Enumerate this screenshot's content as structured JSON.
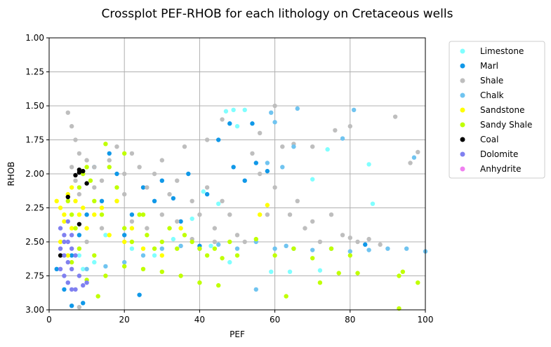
{
  "chart_data": {
    "type": "scatter",
    "title": "Crossplot PEF-RHOB for each lithology on Cretaceous wells",
    "xlabel": "PEF",
    "ylabel": "RHOB",
    "xlim": [
      0,
      100
    ],
    "ylim": [
      3.0,
      1.0
    ],
    "y_inverted": true,
    "grid": true,
    "legend_position": "outside-top-right",
    "xticks": [
      "0",
      "20",
      "40",
      "60",
      "80",
      "100"
    ],
    "yticks": [
      "1.00",
      "1.25",
      "1.50",
      "1.75",
      "2.00",
      "2.25",
      "2.50",
      "2.75",
      "3.00"
    ],
    "series": [
      {
        "name": "Limestone",
        "color": "#80ffff",
        "points": [
          [
            47,
            1.54
          ],
          [
            49,
            1.53
          ],
          [
            52,
            1.53
          ],
          [
            48,
            1.63
          ],
          [
            50,
            1.65
          ],
          [
            74,
            1.82
          ],
          [
            85,
            1.93
          ],
          [
            70,
            2.04
          ],
          [
            86,
            2.22
          ],
          [
            41,
            2.13
          ],
          [
            45,
            2.22
          ],
          [
            38,
            2.33
          ],
          [
            33,
            2.48
          ],
          [
            43,
            2.53
          ],
          [
            48,
            2.65
          ],
          [
            59,
            2.72
          ],
          [
            64,
            2.72
          ],
          [
            72,
            2.71
          ],
          [
            8,
            2.6
          ],
          [
            12,
            2.65
          ],
          [
            5,
            2.8
          ],
          [
            15,
            2.45
          ],
          [
            22,
            2.55
          ],
          [
            28,
            2.6
          ],
          [
            9,
            2.7
          ]
        ]
      },
      {
        "name": "Marl",
        "color": "#1098e8",
        "points": [
          [
            48,
            1.63
          ],
          [
            45,
            1.75
          ],
          [
            55,
            1.92
          ],
          [
            58,
            1.98
          ],
          [
            52,
            2.05
          ],
          [
            54,
            1.63
          ],
          [
            37,
            2.0
          ],
          [
            42,
            2.15
          ],
          [
            30,
            2.05
          ],
          [
            25,
            2.1
          ],
          [
            22,
            2.3
          ],
          [
            18,
            2.0
          ],
          [
            14,
            2.2
          ],
          [
            10,
            2.3
          ],
          [
            8,
            2.45
          ],
          [
            6,
            2.6
          ],
          [
            4,
            2.85
          ],
          [
            2,
            2.7
          ],
          [
            9,
            2.95
          ],
          [
            6,
            2.97
          ],
          [
            24,
            2.89
          ],
          [
            12,
            1.95
          ],
          [
            35,
            2.35
          ],
          [
            40,
            2.53
          ],
          [
            84,
            2.52
          ],
          [
            49,
            1.95
          ],
          [
            16,
            1.85
          ],
          [
            28,
            2.2
          ],
          [
            33,
            2.18
          ],
          [
            20,
            2.45
          ]
        ]
      },
      {
        "name": "Shale",
        "color": "#bebebe",
        "points": [
          [
            5,
            1.55
          ],
          [
            6,
            1.65
          ],
          [
            7,
            1.75
          ],
          [
            8,
            1.85
          ],
          [
            6,
            1.95
          ],
          [
            7,
            2.05
          ],
          [
            8,
            2.15
          ],
          [
            9,
            2.0
          ],
          [
            10,
            1.9
          ],
          [
            12,
            1.95
          ],
          [
            14,
            2.05
          ],
          [
            16,
            1.9
          ],
          [
            18,
            1.8
          ],
          [
            20,
            2.0
          ],
          [
            22,
            1.85
          ],
          [
            24,
            1.95
          ],
          [
            26,
            2.1
          ],
          [
            28,
            2.0
          ],
          [
            30,
            1.9
          ],
          [
            32,
            2.15
          ],
          [
            34,
            2.05
          ],
          [
            36,
            1.8
          ],
          [
            38,
            2.2
          ],
          [
            40,
            2.3
          ],
          [
            42,
            2.1
          ],
          [
            44,
            2.4
          ],
          [
            46,
            2.2
          ],
          [
            48,
            2.3
          ],
          [
            50,
            2.45
          ],
          [
            52,
            2.5
          ],
          [
            54,
            1.85
          ],
          [
            56,
            2.0
          ],
          [
            58,
            2.3
          ],
          [
            60,
            2.1
          ],
          [
            62,
            1.8
          ],
          [
            64,
            2.3
          ],
          [
            66,
            2.2
          ],
          [
            68,
            2.4
          ],
          [
            70,
            2.35
          ],
          [
            72,
            2.5
          ],
          [
            75,
            2.3
          ],
          [
            78,
            2.45
          ],
          [
            80,
            2.47
          ],
          [
            82,
            2.5
          ],
          [
            85,
            2.48
          ],
          [
            88,
            2.52
          ],
          [
            92,
            1.58
          ],
          [
            98,
            1.84
          ],
          [
            96,
            1.92
          ],
          [
            80,
            1.65
          ],
          [
            76,
            1.68
          ],
          [
            60,
            1.5
          ],
          [
            56,
            1.7
          ],
          [
            46,
            1.6
          ],
          [
            42,
            1.75
          ],
          [
            65,
            1.78
          ],
          [
            70,
            1.8
          ],
          [
            30,
            2.3
          ],
          [
            26,
            2.4
          ],
          [
            22,
            2.35
          ],
          [
            18,
            2.2
          ],
          [
            14,
            2.4
          ],
          [
            12,
            2.1
          ],
          [
            10,
            2.5
          ],
          [
            8,
            2.98
          ],
          [
            20,
            2.15
          ],
          [
            34,
            2.35
          ],
          [
            38,
            2.48
          ],
          [
            44,
            2.5
          ]
        ]
      },
      {
        "name": "Chalk",
        "color": "#70c4f0",
        "points": [
          [
            59,
            1.55
          ],
          [
            60,
            1.62
          ],
          [
            66,
            1.52
          ],
          [
            81,
            1.53
          ],
          [
            78,
            1.74
          ],
          [
            62,
            1.95
          ],
          [
            65,
            1.8
          ],
          [
            97,
            1.88
          ],
          [
            55,
            2.5
          ],
          [
            60,
            2.55
          ],
          [
            65,
            2.55
          ],
          [
            70,
            2.56
          ],
          [
            75,
            2.55
          ],
          [
            80,
            2.57
          ],
          [
            85,
            2.56
          ],
          [
            90,
            2.55
          ],
          [
            95,
            2.55
          ],
          [
            100,
            2.57
          ],
          [
            50,
            2.55
          ],
          [
            45,
            2.52
          ],
          [
            40,
            2.55
          ],
          [
            35,
            2.53
          ],
          [
            30,
            2.55
          ],
          [
            25,
            2.6
          ],
          [
            20,
            2.65
          ],
          [
            15,
            2.68
          ],
          [
            10,
            2.7
          ],
          [
            55,
            2.85
          ],
          [
            58,
            1.92
          ],
          [
            63,
            2.53
          ]
        ]
      },
      {
        "name": "Sandstone",
        "color": "#ffff00",
        "points": [
          [
            2,
            2.2
          ],
          [
            3,
            2.25
          ],
          [
            4,
            2.3
          ],
          [
            5,
            2.15
          ],
          [
            6,
            2.1
          ],
          [
            7,
            2.2
          ],
          [
            8,
            2.3
          ],
          [
            9,
            2.25
          ],
          [
            10,
            2.4
          ],
          [
            12,
            2.3
          ],
          [
            14,
            2.25
          ],
          [
            16,
            2.45
          ],
          [
            20,
            2.5
          ],
          [
            25,
            2.55
          ],
          [
            30,
            2.6
          ],
          [
            35,
            2.4
          ],
          [
            56,
            2.3
          ],
          [
            58,
            2.23
          ],
          [
            3,
            2.5
          ],
          [
            5,
            2.6
          ],
          [
            6,
            2.4
          ],
          [
            4,
            2.35
          ],
          [
            18,
            2.2
          ],
          [
            22,
            2.4
          ]
        ]
      },
      {
        "name": "Sandy Shale",
        "color": "#c0ff00",
        "points": [
          [
            5,
            2.2
          ],
          [
            6,
            2.3
          ],
          [
            7,
            2.4
          ],
          [
            8,
            2.1
          ],
          [
            9,
            2.0
          ],
          [
            10,
            1.95
          ],
          [
            11,
            2.05
          ],
          [
            12,
            2.2
          ],
          [
            14,
            2.3
          ],
          [
            16,
            1.95
          ],
          [
            18,
            2.1
          ],
          [
            20,
            2.4
          ],
          [
            22,
            2.5
          ],
          [
            24,
            2.3
          ],
          [
            26,
            2.45
          ],
          [
            28,
            2.55
          ],
          [
            30,
            2.5
          ],
          [
            32,
            2.4
          ],
          [
            34,
            2.55
          ],
          [
            36,
            2.45
          ],
          [
            38,
            2.5
          ],
          [
            40,
            2.55
          ],
          [
            42,
            2.6
          ],
          [
            44,
            2.55
          ],
          [
            46,
            2.62
          ],
          [
            48,
            2.5
          ],
          [
            50,
            2.6
          ],
          [
            55,
            2.48
          ],
          [
            60,
            2.6
          ],
          [
            65,
            2.55
          ],
          [
            70,
            2.62
          ],
          [
            75,
            2.55
          ],
          [
            80,
            2.6
          ],
          [
            45,
            2.82
          ],
          [
            40,
            2.8
          ],
          [
            35,
            2.75
          ],
          [
            30,
            2.72
          ],
          [
            25,
            2.7
          ],
          [
            20,
            2.68
          ],
          [
            15,
            2.75
          ],
          [
            10,
            2.78
          ],
          [
            63,
            2.9
          ],
          [
            72,
            2.8
          ],
          [
            77,
            2.73
          ],
          [
            82,
            2.73
          ],
          [
            93,
            2.75
          ],
          [
            94,
            2.72
          ],
          [
            98,
            2.8
          ],
          [
            93,
            2.99
          ],
          [
            15,
            1.78
          ],
          [
            20,
            1.85
          ],
          [
            25,
            2.3
          ],
          [
            12,
            2.6
          ],
          [
            8,
            2.55
          ],
          [
            6,
            2.65
          ],
          [
            13,
            2.9
          ]
        ]
      },
      {
        "name": "Coal",
        "color": "#000000",
        "points": [
          [
            7,
            2.01
          ],
          [
            8,
            1.99
          ],
          [
            9,
            1.98
          ],
          [
            8,
            1.97
          ],
          [
            10,
            2.07
          ],
          [
            5,
            2.17
          ],
          [
            8,
            2.37
          ],
          [
            3,
            2.6
          ]
        ]
      },
      {
        "name": "Dolomite",
        "color": "#8080f0",
        "points": [
          [
            3,
            2.4
          ],
          [
            4,
            2.45
          ],
          [
            5,
            2.5
          ],
          [
            6,
            2.55
          ],
          [
            4,
            2.6
          ],
          [
            5,
            2.65
          ],
          [
            6,
            2.7
          ],
          [
            3,
            2.55
          ],
          [
            4,
            2.75
          ],
          [
            5,
            2.8
          ],
          [
            6,
            2.85
          ],
          [
            7,
            2.6
          ],
          [
            8,
            2.75
          ],
          [
            9,
            2.82
          ],
          [
            10,
            2.8
          ],
          [
            7,
            2.85
          ],
          [
            3,
            2.7
          ],
          [
            5,
            2.35
          ],
          [
            6,
            2.45
          ],
          [
            4,
            2.5
          ]
        ]
      },
      {
        "name": "Anhydrite",
        "color": "#f080f0",
        "points": []
      }
    ]
  }
}
